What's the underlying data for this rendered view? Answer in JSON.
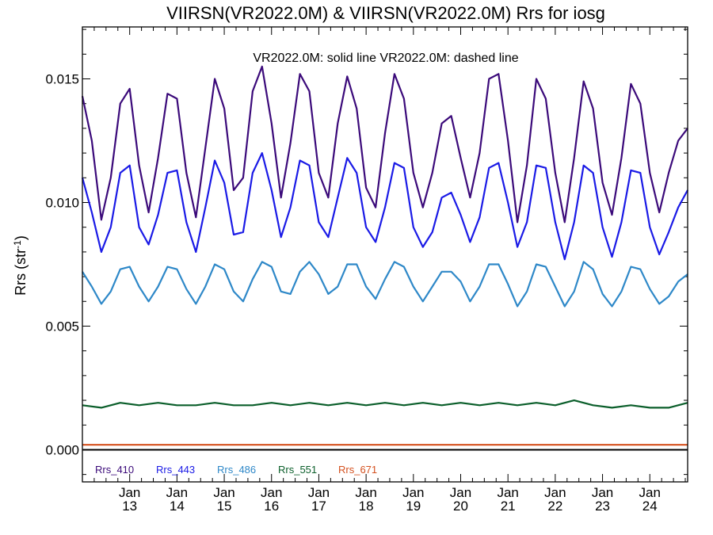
{
  "chart_data": {
    "type": "line",
    "title": "VIIRSN(VR2022.0M) & VIIRSN(VR2022.0M)  Rrs for iosg",
    "annotation": "VR2022.0M: solid line   VR2022.0M: dashed line",
    "ylabel": "Rrs (str",
    "ylabel_sup": "-1",
    "ylabel_close": ")",
    "ylim": [
      -0.0013,
      0.0171
    ],
    "xlim": [
      12.0,
      24.8
    ],
    "grid": false,
    "yticks": [
      {
        "value": 0.0,
        "label": "0.000"
      },
      {
        "value": 0.005,
        "label": "0.005"
      },
      {
        "value": 0.01,
        "label": "0.010"
      },
      {
        "value": 0.015,
        "label": "0.015"
      }
    ],
    "xticks": [
      {
        "value": 13,
        "line1": "Jan",
        "line2": "13"
      },
      {
        "value": 14,
        "line1": "Jan",
        "line2": "14"
      },
      {
        "value": 15,
        "line1": "Jan",
        "line2": "15"
      },
      {
        "value": 16,
        "line1": "Jan",
        "line2": "16"
      },
      {
        "value": 17,
        "line1": "Jan",
        "line2": "17"
      },
      {
        "value": 18,
        "line1": "Jan",
        "line2": "18"
      },
      {
        "value": 19,
        "line1": "Jan",
        "line2": "19"
      },
      {
        "value": 20,
        "line1": "Jan",
        "line2": "20"
      },
      {
        "value": 21,
        "line1": "Jan",
        "line2": "21"
      },
      {
        "value": 22,
        "line1": "Jan",
        "line2": "22"
      },
      {
        "value": 23,
        "line1": "Jan",
        "line2": "23"
      },
      {
        "value": 24,
        "line1": "Jan",
        "line2": "24"
      }
    ],
    "series": [
      {
        "name": "Rrs_410",
        "color": "#3b0a7a",
        "x": [
          12.0,
          12.2,
          12.4,
          12.6,
          12.8,
          13.0,
          13.2,
          13.4,
          13.6,
          13.8,
          14.0,
          14.2,
          14.4,
          14.6,
          14.8,
          15.0,
          15.2,
          15.4,
          15.6,
          15.8,
          16.0,
          16.2,
          16.4,
          16.6,
          16.8,
          17.0,
          17.2,
          17.4,
          17.6,
          17.8,
          18.0,
          18.2,
          18.4,
          18.6,
          18.8,
          19.0,
          19.2,
          19.4,
          19.6,
          19.8,
          20.0,
          20.2,
          20.4,
          20.6,
          20.8,
          21.0,
          21.2,
          21.4,
          21.6,
          21.8,
          22.0,
          22.2,
          22.4,
          22.6,
          22.8,
          23.0,
          23.2,
          23.4,
          23.6,
          23.8,
          24.0,
          24.2,
          24.4,
          24.6,
          24.8
        ],
        "values": [
          0.0143,
          0.0125,
          0.0093,
          0.011,
          0.014,
          0.0146,
          0.0115,
          0.0096,
          0.0118,
          0.0144,
          0.0142,
          0.0112,
          0.0094,
          0.0122,
          0.015,
          0.0138,
          0.0105,
          0.011,
          0.0145,
          0.0155,
          0.0132,
          0.0102,
          0.0124,
          0.0152,
          0.0145,
          0.0112,
          0.0102,
          0.0132,
          0.0151,
          0.0138,
          0.0106,
          0.0098,
          0.0128,
          0.0152,
          0.0142,
          0.0112,
          0.0098,
          0.0112,
          0.0132,
          0.0135,
          0.0118,
          0.0102,
          0.012,
          0.015,
          0.0152,
          0.0125,
          0.0092,
          0.0115,
          0.015,
          0.0142,
          0.0112,
          0.0092,
          0.0118,
          0.0149,
          0.0138,
          0.0108,
          0.0095,
          0.0118,
          0.0148,
          0.014,
          0.0112,
          0.0096,
          0.0112,
          0.0125,
          0.013
        ]
      },
      {
        "name": "Rrs_443",
        "color": "#1a1ae6",
        "x": [
          12.0,
          12.2,
          12.4,
          12.6,
          12.8,
          13.0,
          13.2,
          13.4,
          13.6,
          13.8,
          14.0,
          14.2,
          14.4,
          14.6,
          14.8,
          15.0,
          15.2,
          15.4,
          15.6,
          15.8,
          16.0,
          16.2,
          16.4,
          16.6,
          16.8,
          17.0,
          17.2,
          17.4,
          17.6,
          17.8,
          18.0,
          18.2,
          18.4,
          18.6,
          18.8,
          19.0,
          19.2,
          19.4,
          19.6,
          19.8,
          20.0,
          20.2,
          20.4,
          20.6,
          20.8,
          21.0,
          21.2,
          21.4,
          21.6,
          21.8,
          22.0,
          22.2,
          22.4,
          22.6,
          22.8,
          23.0,
          23.2,
          23.4,
          23.6,
          23.8,
          24.0,
          24.2,
          24.4,
          24.6,
          24.8
        ],
        "values": [
          0.011,
          0.0096,
          0.008,
          0.009,
          0.0112,
          0.0115,
          0.009,
          0.0083,
          0.0095,
          0.0112,
          0.0113,
          0.0092,
          0.008,
          0.0098,
          0.0117,
          0.0108,
          0.0087,
          0.0088,
          0.0112,
          0.012,
          0.0105,
          0.0086,
          0.0098,
          0.0117,
          0.0115,
          0.0092,
          0.0086,
          0.0102,
          0.0118,
          0.0112,
          0.009,
          0.0084,
          0.0098,
          0.0116,
          0.0114,
          0.009,
          0.0082,
          0.0088,
          0.0102,
          0.0104,
          0.0095,
          0.0084,
          0.0094,
          0.0114,
          0.0116,
          0.01,
          0.0082,
          0.0092,
          0.0115,
          0.0114,
          0.0092,
          0.0077,
          0.0092,
          0.0115,
          0.0112,
          0.009,
          0.0078,
          0.0092,
          0.0113,
          0.0112,
          0.009,
          0.0079,
          0.0088,
          0.0098,
          0.0105
        ]
      },
      {
        "name": "Rrs_486",
        "color": "#2e88c8",
        "x": [
          12.0,
          12.2,
          12.4,
          12.6,
          12.8,
          13.0,
          13.2,
          13.4,
          13.6,
          13.8,
          14.0,
          14.2,
          14.4,
          14.6,
          14.8,
          15.0,
          15.2,
          15.4,
          15.6,
          15.8,
          16.0,
          16.2,
          16.4,
          16.6,
          16.8,
          17.0,
          17.2,
          17.4,
          17.6,
          17.8,
          18.0,
          18.2,
          18.4,
          18.6,
          18.8,
          19.0,
          19.2,
          19.4,
          19.6,
          19.8,
          20.0,
          20.2,
          20.4,
          20.6,
          20.8,
          21.0,
          21.2,
          21.4,
          21.6,
          21.8,
          22.0,
          22.2,
          22.4,
          22.6,
          22.8,
          23.0,
          23.2,
          23.4,
          23.6,
          23.8,
          24.0,
          24.2,
          24.4,
          24.6,
          24.8
        ],
        "values": [
          0.0072,
          0.0066,
          0.0059,
          0.0064,
          0.0073,
          0.0074,
          0.0066,
          0.006,
          0.0066,
          0.0074,
          0.0073,
          0.0065,
          0.0059,
          0.0066,
          0.0075,
          0.0073,
          0.0064,
          0.006,
          0.0069,
          0.0076,
          0.0074,
          0.0064,
          0.0063,
          0.0072,
          0.0076,
          0.0071,
          0.0063,
          0.0066,
          0.0075,
          0.0075,
          0.0066,
          0.0061,
          0.0069,
          0.0076,
          0.0074,
          0.0066,
          0.006,
          0.0066,
          0.0072,
          0.0072,
          0.0068,
          0.006,
          0.0066,
          0.0075,
          0.0075,
          0.0067,
          0.0058,
          0.0064,
          0.0075,
          0.0074,
          0.0066,
          0.0058,
          0.0064,
          0.0076,
          0.0073,
          0.0063,
          0.0058,
          0.0064,
          0.0074,
          0.0073,
          0.0065,
          0.0059,
          0.0062,
          0.0068,
          0.0071
        ]
      },
      {
        "name": "Rrs_551",
        "color": "#0a5e2a",
        "x": [
          12.0,
          12.4,
          12.8,
          13.2,
          13.6,
          14.0,
          14.4,
          14.8,
          15.2,
          15.6,
          16.0,
          16.4,
          16.8,
          17.2,
          17.6,
          18.0,
          18.4,
          18.8,
          19.2,
          19.6,
          20.0,
          20.4,
          20.8,
          21.2,
          21.6,
          22.0,
          22.4,
          22.8,
          23.2,
          23.6,
          24.0,
          24.4,
          24.8
        ],
        "values": [
          0.0018,
          0.0017,
          0.0019,
          0.0018,
          0.0019,
          0.0018,
          0.0018,
          0.0019,
          0.0018,
          0.0018,
          0.0019,
          0.0018,
          0.0019,
          0.0018,
          0.0019,
          0.0018,
          0.0019,
          0.0018,
          0.0019,
          0.0018,
          0.0019,
          0.0018,
          0.0019,
          0.0018,
          0.0019,
          0.0018,
          0.002,
          0.0018,
          0.0017,
          0.0018,
          0.0017,
          0.0017,
          0.0019
        ]
      },
      {
        "name": "Rrs_671",
        "color": "#d4501e",
        "x": [
          12.0,
          12.8,
          13.6,
          14.4,
          15.2,
          16.0,
          16.8,
          17.6,
          18.4,
          19.2,
          20.0,
          20.8,
          21.6,
          22.4,
          23.2,
          24.0,
          24.8
        ],
        "values": [
          0.0002,
          0.0002,
          0.0002,
          0.0002,
          0.0002,
          0.0002,
          0.0002,
          0.0002,
          0.0002,
          0.0002,
          0.0002,
          0.0002,
          0.0002,
          0.0002,
          0.0002,
          0.0002,
          0.0002
        ]
      }
    ],
    "legend": [
      {
        "label": "Rrs_410",
        "color": "#3b0a7a"
      },
      {
        "label": "Rrs_443",
        "color": "#1a1ae6"
      },
      {
        "label": "Rrs_486",
        "color": "#2e88c8"
      },
      {
        "label": "Rrs_551",
        "color": "#0a5e2a"
      },
      {
        "label": "Rrs_671",
        "color": "#d4501e"
      }
    ]
  }
}
